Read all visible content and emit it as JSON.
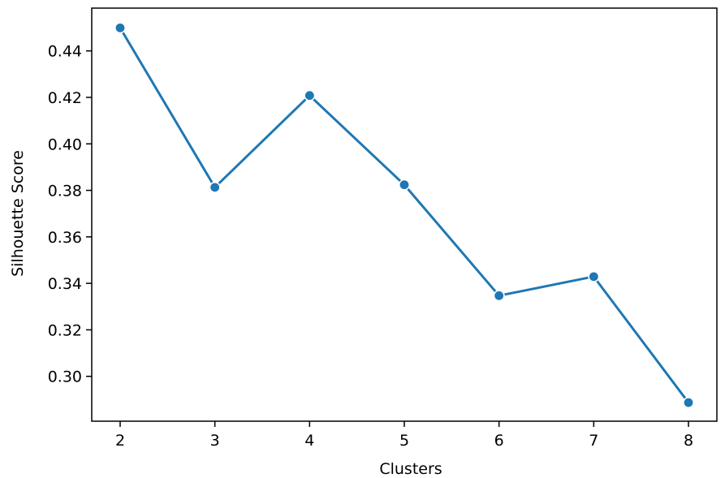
{
  "chart_data": {
    "type": "line",
    "title": "",
    "xlabel": "Clusters",
    "ylabel": "Silhouette Score",
    "x": [
      2,
      3,
      4,
      5,
      6,
      7,
      8
    ],
    "series": [
      {
        "values": [
          0.4499,
          0.3813,
          0.4208,
          0.3824,
          0.3347,
          0.3429,
          0.2887
        ],
        "color": "#1f77b4",
        "marker": "circle"
      }
    ],
    "xticks": [
      "2",
      "3",
      "4",
      "5",
      "6",
      "7",
      "8"
    ],
    "yticks": [
      "0.30",
      "0.32",
      "0.34",
      "0.36",
      "0.38",
      "0.40",
      "0.42",
      "0.44"
    ],
    "xlim": [
      1.7,
      8.3
    ],
    "ylim": [
      0.2807,
      0.4584
    ],
    "grid": false,
    "legend": false
  }
}
